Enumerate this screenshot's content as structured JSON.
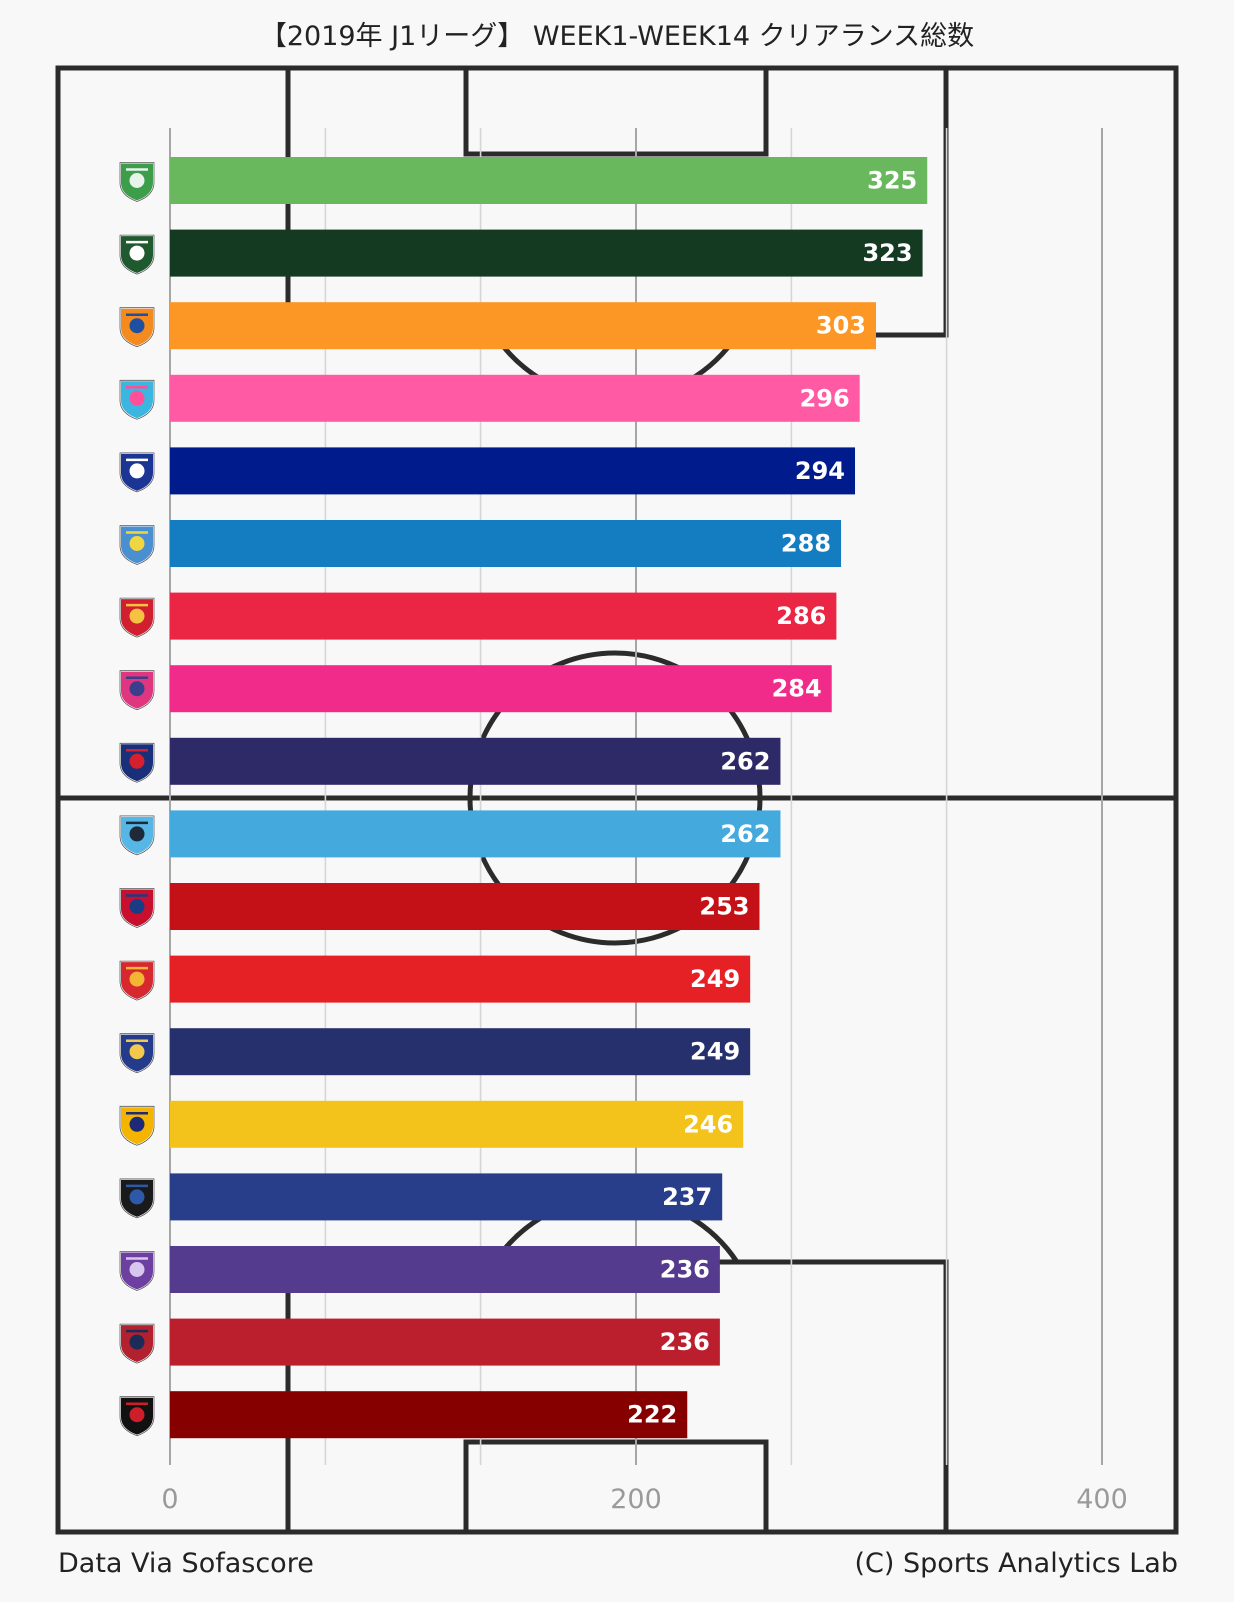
{
  "title": "【2019年 J1リーグ】 WEEK1-WEEK14 クリアランス総数",
  "footer": {
    "source": "Data Via Sofascore",
    "credit": "(C) Sports Analytics Lab"
  },
  "chart_data": {
    "type": "bar",
    "orientation": "horizontal",
    "title": "【2019年 J1リーグ】 WEEK1-WEEK14 クリアランス総数",
    "xlim": [
      0,
      430
    ],
    "x_ticks": [
      0,
      200,
      400
    ],
    "x_ticks_labeled": [
      "0",
      "200",
      "400"
    ],
    "grid": true,
    "grid_values": [
      0,
      66.7,
      133.3,
      200,
      266.7,
      333.3,
      400
    ],
    "categories": [
      "Shonan Bellmare crest",
      "Matsumoto Yamaga crest",
      "Shimizu S-Pulse crest",
      "Sagan Tosu crest",
      "Oita Trinita crest",
      "Jubilo Iwata crest",
      "Urawa Reds crest",
      "Cerezo Osaka crest",
      "FC Tokyo crest",
      "Kawasaki Frontale crest",
      "Consadole Sapporo crest",
      "Nagoya Grampus crest",
      "Yokohama F. Marinos crest",
      "Vegalta Sendai crest",
      "Gamba Osaka crest",
      "Sanfrecce Hiroshima crest",
      "Kashima Antlers crest",
      "Vissel Kobe crest"
    ],
    "values": [
      325,
      323,
      303,
      296,
      294,
      288,
      286,
      284,
      262,
      262,
      253,
      249,
      249,
      246,
      237,
      236,
      236,
      222
    ],
    "value_labels": [
      "325",
      "323",
      "303",
      "296",
      "294",
      "288",
      "286",
      "284",
      "262",
      "262",
      "253",
      "249",
      "249",
      "246",
      "237",
      "236",
      "236",
      "222"
    ],
    "colors": [
      "#69b85e",
      "#143a22",
      "#fc9624",
      "#ff5aa3",
      "#001b8c",
      "#147dc1",
      "#eb2645",
      "#f12b8a",
      "#2e2967",
      "#44a9dc",
      "#c41117",
      "#e52126",
      "#26306d",
      "#f4c31b",
      "#283e8b",
      "#553b8e",
      "#bb1f2d",
      "#870000"
    ],
    "logo_colors": [
      [
        "#3c9e4a",
        "#e8f4ea"
      ],
      [
        "#1f5a2f",
        "#ffffff"
      ],
      [
        "#f58a1e",
        "#1f4fa0"
      ],
      [
        "#3bb6e0",
        "#ff4f9b"
      ],
      [
        "#1a3594",
        "#ffffff"
      ],
      [
        "#4a8fd0",
        "#f0d640"
      ],
      [
        "#d11f2f",
        "#f5c242"
      ],
      [
        "#e0367f",
        "#3a3e8c"
      ],
      [
        "#1a2f7a",
        "#d6202f"
      ],
      [
        "#56b6e5",
        "#1e2a3a"
      ],
      [
        "#c8102e",
        "#1a3c86"
      ],
      [
        "#d7282f",
        "#f2b632"
      ],
      [
        "#243a8a",
        "#f2c94c"
      ],
      [
        "#f4b400",
        "#1e2a78"
      ],
      [
        "#1a1a1a",
        "#2c5aa8"
      ],
      [
        "#6c3fa0",
        "#d9c6ee"
      ],
      [
        "#b3202e",
        "#1c2b58"
      ],
      [
        "#111111",
        "#cc1f2a"
      ]
    ]
  }
}
